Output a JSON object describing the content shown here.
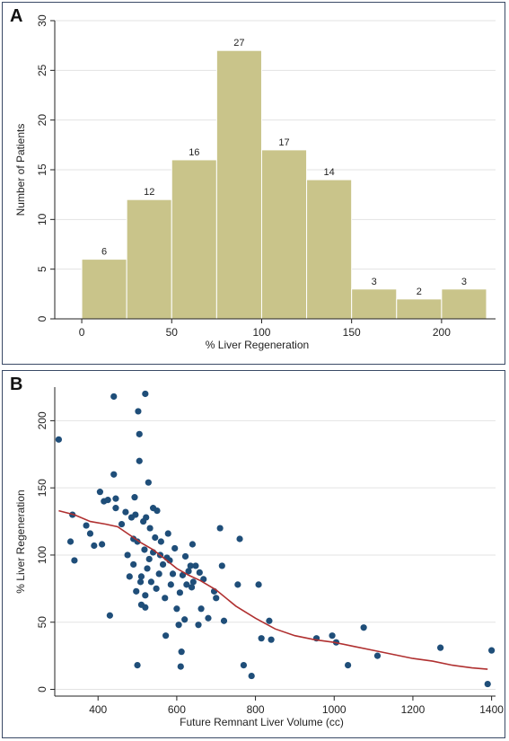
{
  "chart_data": [
    {
      "panel_label": "A",
      "type": "bar",
      "bin_starts": [
        0,
        25,
        50,
        75,
        100,
        125,
        150,
        175,
        200
      ],
      "bin_width": 25,
      "values": [
        6,
        12,
        16,
        27,
        17,
        14,
        3,
        2,
        3
      ],
      "data_labels": [
        "6",
        "12",
        "16",
        "27",
        "17",
        "14",
        "3",
        "2",
        "3"
      ],
      "xlabel": "% Liver Regeneration",
      "ylabel": "Number of Patients",
      "xlim": [
        -15,
        230
      ],
      "ylim": [
        0,
        30
      ],
      "xticks": [
        0,
        50,
        100,
        150,
        200
      ],
      "yticks": [
        0,
        5,
        10,
        15,
        20,
        25,
        30
      ],
      "grid": true,
      "colors": {
        "bar": "#c9c48a",
        "bar_edge": "#ffffff"
      }
    },
    {
      "panel_label": "B",
      "type": "scatter",
      "xlabel": "Future Remnant Liver Volume (cc)",
      "ylabel": "% Liver Regeneration",
      "xlim": [
        290,
        1410
      ],
      "ylim": [
        -5,
        225
      ],
      "xticks": [
        400,
        600,
        800,
        1000,
        1200,
        1400
      ],
      "yticks": [
        0,
        50,
        100,
        150,
        200
      ],
      "grid": true,
      "colors": {
        "point": "#1f4e79",
        "curve": "#b03030"
      },
      "points": [
        [
          300,
          186
        ],
        [
          330,
          110
        ],
        [
          335,
          130
        ],
        [
          340,
          96
        ],
        [
          370,
          122
        ],
        [
          380,
          116
        ],
        [
          390,
          107
        ],
        [
          405,
          147
        ],
        [
          410,
          108
        ],
        [
          415,
          140
        ],
        [
          425,
          141
        ],
        [
          430,
          55
        ],
        [
          440,
          218
        ],
        [
          440,
          160
        ],
        [
          445,
          142
        ],
        [
          445,
          135
        ],
        [
          460,
          123
        ],
        [
          470,
          132
        ],
        [
          475,
          100
        ],
        [
          480,
          84
        ],
        [
          485,
          128
        ],
        [
          490,
          112
        ],
        [
          490,
          93
        ],
        [
          493,
          143
        ],
        [
          495,
          130
        ],
        [
          497,
          73
        ],
        [
          500,
          18
        ],
        [
          500,
          110
        ],
        [
          502,
          207
        ],
        [
          505,
          190
        ],
        [
          505,
          170
        ],
        [
          508,
          80
        ],
        [
          510,
          63
        ],
        [
          510,
          84
        ],
        [
          515,
          125
        ],
        [
          518,
          104
        ],
        [
          520,
          220
        ],
        [
          520,
          70
        ],
        [
          520,
          61
        ],
        [
          522,
          128
        ],
        [
          525,
          90
        ],
        [
          528,
          154
        ],
        [
          530,
          97
        ],
        [
          532,
          120
        ],
        [
          535,
          80
        ],
        [
          540,
          135
        ],
        [
          540,
          102
        ],
        [
          545,
          113
        ],
        [
          548,
          75
        ],
        [
          550,
          133
        ],
        [
          555,
          86
        ],
        [
          558,
          100
        ],
        [
          560,
          110
        ],
        [
          565,
          93
        ],
        [
          570,
          68
        ],
        [
          572,
          40
        ],
        [
          575,
          98
        ],
        [
          578,
          116
        ],
        [
          582,
          96
        ],
        [
          585,
          78
        ],
        [
          590,
          86
        ],
        [
          595,
          105
        ],
        [
          600,
          60
        ],
        [
          605,
          48
        ],
        [
          608,
          72
        ],
        [
          610,
          17
        ],
        [
          612,
          28
        ],
        [
          615,
          85
        ],
        [
          620,
          52
        ],
        [
          622,
          99
        ],
        [
          625,
          78
        ],
        [
          630,
          88
        ],
        [
          635,
          92
        ],
        [
          638,
          76
        ],
        [
          640,
          108
        ],
        [
          642,
          80
        ],
        [
          648,
          92
        ],
        [
          655,
          48
        ],
        [
          658,
          87
        ],
        [
          662,
          60
        ],
        [
          668,
          82
        ],
        [
          680,
          53
        ],
        [
          695,
          73
        ],
        [
          700,
          68
        ],
        [
          710,
          120
        ],
        [
          715,
          92
        ],
        [
          720,
          51
        ],
        [
          755,
          78
        ],
        [
          760,
          112
        ],
        [
          770,
          18
        ],
        [
          790,
          10
        ],
        [
          808,
          78
        ],
        [
          815,
          38
        ],
        [
          835,
          51
        ],
        [
          840,
          37
        ],
        [
          955,
          38
        ],
        [
          995,
          40
        ],
        [
          1005,
          35
        ],
        [
          1035,
          18
        ],
        [
          1075,
          46
        ],
        [
          1110,
          25
        ],
        [
          1270,
          31
        ],
        [
          1390,
          4
        ],
        [
          1400,
          29
        ]
      ],
      "curve": [
        [
          300,
          133
        ],
        [
          340,
          130
        ],
        [
          380,
          125
        ],
        [
          420,
          123
        ],
        [
          450,
          121
        ],
        [
          480,
          115
        ],
        [
          510,
          109
        ],
        [
          540,
          104
        ],
        [
          570,
          97
        ],
        [
          600,
          90
        ],
        [
          630,
          85
        ],
        [
          660,
          81
        ],
        [
          700,
          74
        ],
        [
          750,
          62
        ],
        [
          800,
          53
        ],
        [
          850,
          45
        ],
        [
          900,
          40
        ],
        [
          950,
          37
        ],
        [
          1000,
          35
        ],
        [
          1050,
          32
        ],
        [
          1100,
          29
        ],
        [
          1150,
          26
        ],
        [
          1200,
          23
        ],
        [
          1250,
          21
        ],
        [
          1300,
          18
        ],
        [
          1350,
          16
        ],
        [
          1390,
          15
        ]
      ]
    }
  ]
}
